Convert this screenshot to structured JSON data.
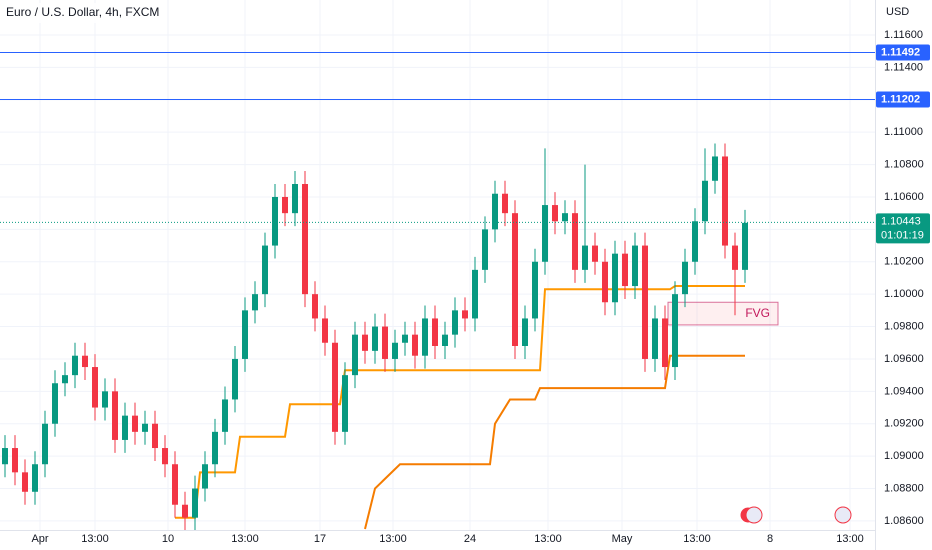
{
  "chart_data": {
    "type": "candlestick",
    "title": "Euro / U.S. Dollar, 4h, FXCM",
    "y_axis_label": "USD",
    "grid": true,
    "up_color": "#089981",
    "down_color": "#f23645",
    "xlim": [
      -0.5,
      87
    ],
    "xticks": [
      {
        "value": 3.5,
        "label": "Apr"
      },
      {
        "value": 9,
        "label": "13:00"
      },
      {
        "value": 16.3,
        "label": "10"
      },
      {
        "value": 24,
        "label": "13:00"
      },
      {
        "value": 31.5,
        "label": "17"
      },
      {
        "value": 38.8,
        "label": "13:00"
      },
      {
        "value": 46.5,
        "label": "24"
      },
      {
        "value": 54.3,
        "label": "13:00"
      },
      {
        "value": 61.7,
        "label": "May"
      },
      {
        "value": 69.2,
        "label": "13:00"
      },
      {
        "value": 76.5,
        "label": "8"
      },
      {
        "value": 84.5,
        "label": "13:00"
      }
    ],
    "ylim": [
      1.08544,
      1.11816
    ],
    "yticks": [
      {
        "value": 1.086,
        "label": "1.08600"
      },
      {
        "value": 1.088,
        "label": "1.08800"
      },
      {
        "value": 1.09,
        "label": "1.09000"
      },
      {
        "value": 1.092,
        "label": "1.09200"
      },
      {
        "value": 1.094,
        "label": "1.09400"
      },
      {
        "value": 1.096,
        "label": "1.09600"
      },
      {
        "value": 1.098,
        "label": "1.09800"
      },
      {
        "value": 1.1,
        "label": "1.10000"
      },
      {
        "value": 1.102,
        "label": "1.10200"
      },
      {
        "value": 1.104,
        "label": "1.10400"
      },
      {
        "value": 1.106,
        "label": "1.10600"
      },
      {
        "value": 1.108,
        "label": "1.10800"
      },
      {
        "value": 1.11,
        "label": "1.11000"
      },
      {
        "value": 1.112,
        "label": "1.11200"
      },
      {
        "value": 1.114,
        "label": "1.11400"
      },
      {
        "value": 1.116,
        "label": "1.11600"
      }
    ],
    "x": [
      0,
      1,
      2,
      3,
      4,
      5,
      6,
      7,
      8,
      9,
      10,
      11,
      12,
      13,
      14,
      15,
      16,
      17,
      18,
      19,
      20,
      21,
      22,
      23,
      24,
      25,
      26,
      27,
      28,
      29,
      30,
      31,
      32,
      33,
      34,
      35,
      36,
      37,
      38,
      39,
      40,
      41,
      42,
      43,
      44,
      45,
      46,
      47,
      48,
      49,
      50,
      51,
      52,
      53,
      54,
      55,
      56,
      57,
      58,
      59,
      60,
      61,
      62,
      63,
      64,
      65,
      66,
      67,
      68,
      69,
      70,
      71,
      72,
      73,
      74
    ],
    "open": [
      1.0895,
      1.0905,
      1.089,
      1.0878,
      1.0895,
      1.092,
      1.0945,
      1.095,
      1.0962,
      1.0955,
      1.093,
      1.094,
      1.091,
      1.0925,
      1.0915,
      1.092,
      1.0905,
      1.0895,
      1.087,
      1.0862,
      1.088,
      1.0895,
      1.0915,
      1.0935,
      1.096,
      1.099,
      1.1,
      1.103,
      1.106,
      1.105,
      1.1068,
      1.1,
      1.0985,
      1.097,
      1.0915,
      1.095,
      1.0975,
      1.0965,
      1.098,
      1.096,
      1.097,
      1.0975,
      1.0962,
      1.0985,
      1.0968,
      1.0975,
      1.099,
      1.0985,
      1.1015,
      1.104,
      1.1062,
      1.105,
      1.0968,
      1.0985,
      1.102,
      1.1055,
      1.1045,
      1.105,
      1.1015,
      1.103,
      1.102,
      1.0995,
      1.1025,
      1.1005,
      1.103,
      1.096,
      1.0985,
      1.0955,
      1.1,
      1.102,
      1.1045,
      1.107,
      1.1085,
      1.103,
      1.1015
    ],
    "high": [
      1.0913,
      1.0913,
      1.0898,
      1.0903,
      1.0928,
      1.0953,
      1.0958,
      1.097,
      1.097,
      1.0963,
      1.0948,
      1.0948,
      1.0933,
      1.0933,
      1.0928,
      1.0928,
      1.0913,
      1.0903,
      1.0878,
      1.0888,
      1.0903,
      1.0923,
      1.0943,
      1.0968,
      1.0998,
      1.1008,
      1.1038,
      1.1068,
      1.1068,
      1.1076,
      1.1076,
      1.1008,
      1.0993,
      1.0978,
      1.0958,
      1.0983,
      1.0983,
      1.0988,
      1.0988,
      1.0978,
      1.0983,
      1.0983,
      1.0993,
      1.0993,
      1.0983,
      1.0998,
      1.0998,
      1.1023,
      1.1048,
      1.107,
      1.107,
      1.1058,
      1.0993,
      1.1028,
      1.109,
      1.1063,
      1.1058,
      1.1058,
      1.108,
      1.1038,
      1.1028,
      1.1033,
      1.1033,
      1.1038,
      1.1038,
      1.0993,
      1.0993,
      1.1008,
      1.1028,
      1.1053,
      1.109,
      1.1093,
      1.1093,
      1.1038,
      1.1052
    ],
    "low": [
      1.0887,
      1.0882,
      1.087,
      1.087,
      1.0887,
      1.0912,
      1.0937,
      1.0942,
      1.0947,
      1.0922,
      1.0922,
      1.0902,
      1.0902,
      1.0907,
      1.0907,
      1.0897,
      1.0887,
      1.0862,
      1.0854,
      1.0854,
      1.0872,
      1.0887,
      1.0907,
      1.0927,
      1.0952,
      1.0982,
      1.0992,
      1.1022,
      1.1042,
      1.1042,
      1.0992,
      1.0977,
      1.0962,
      1.0907,
      1.0907,
      1.0942,
      1.0957,
      1.0957,
      1.0952,
      1.0952,
      1.0962,
      1.0954,
      1.0954,
      1.096,
      1.096,
      1.0967,
      1.0977,
      1.0977,
      1.1007,
      1.1032,
      1.1042,
      1.096,
      1.096,
      1.0977,
      1.1012,
      1.1037,
      1.1037,
      1.1007,
      1.1007,
      1.1012,
      1.0987,
      1.0987,
      1.0997,
      1.0997,
      1.0952,
      1.0952,
      1.0947,
      1.0947,
      1.0992,
      1.1012,
      1.1037,
      1.1062,
      1.1022,
      1.0987,
      1.1007
    ],
    "close": [
      1.0905,
      1.089,
      1.0878,
      1.0895,
      1.092,
      1.0945,
      1.095,
      1.0962,
      1.0955,
      1.093,
      1.094,
      1.091,
      1.0925,
      1.0915,
      1.092,
      1.0905,
      1.0895,
      1.087,
      1.0862,
      1.088,
      1.0895,
      1.0915,
      1.0935,
      1.096,
      1.099,
      1.1,
      1.103,
      1.106,
      1.105,
      1.1068,
      1.1,
      1.0985,
      1.097,
      1.0915,
      1.095,
      1.0975,
      1.0965,
      1.098,
      1.096,
      1.097,
      1.0975,
      1.0962,
      1.0985,
      1.0968,
      1.0975,
      1.099,
      1.0985,
      1.1015,
      1.104,
      1.1062,
      1.105,
      1.0968,
      1.0985,
      1.102,
      1.1055,
      1.1045,
      1.105,
      1.1015,
      1.103,
      1.102,
      1.0995,
      1.1025,
      1.1005,
      1.103,
      1.096,
      1.0985,
      1.0955,
      1.1,
      1.102,
      1.1045,
      1.107,
      1.1085,
      1.103,
      1.1015,
      1.1044
    ],
    "lines": [
      {
        "color": "#ff9800",
        "x": [
          17,
          19,
          19.5,
          23,
          23.5,
          28,
          28.5,
          33.5,
          34,
          53.5,
          54,
          66.5,
          67,
          74
        ],
        "values": [
          1.0862,
          1.0862,
          1.089,
          1.089,
          1.0912,
          1.0912,
          1.0932,
          1.0932,
          1.0953,
          1.0953,
          1.1003,
          1.1003,
          1.1005,
          1.1005
        ]
      },
      {
        "color": "#f57c00",
        "x": [
          36,
          37,
          39.5,
          48.5,
          49,
          50.5,
          53,
          53.5,
          66,
          66.5,
          74
        ],
        "values": [
          1.0855,
          1.088,
          1.0895,
          1.0895,
          1.092,
          1.0935,
          1.0935,
          1.0942,
          1.0942,
          1.0962,
          1.0962
        ]
      }
    ],
    "levels": [
      {
        "value": 1.11492,
        "color": "#2962ff"
      },
      {
        "value": 1.11202,
        "color": "#2962ff"
      }
    ],
    "last_price": {
      "value": 1.10443,
      "countdown": "01:01:19",
      "color": "#089981"
    },
    "annotations": [
      {
        "text": "FVG",
        "x_range": [
          66.3,
          77.3
        ],
        "y_range": [
          1.0981,
          1.0995
        ]
      }
    ]
  }
}
